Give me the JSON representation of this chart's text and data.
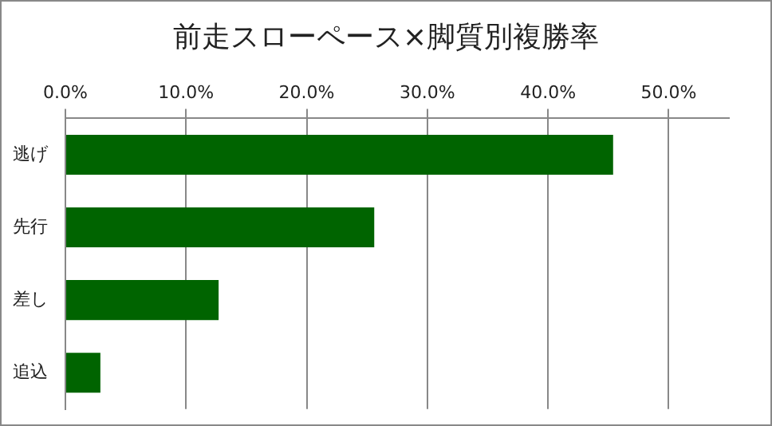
{
  "chart_data": {
    "type": "bar",
    "orientation": "horizontal",
    "title": "前走スローペース×脚質別複勝率",
    "categories": [
      "逃げ",
      "先行",
      "差し",
      "追込"
    ],
    "values": [
      45.4,
      25.6,
      12.7,
      2.9
    ],
    "color": "#006400",
    "xlim": [
      0,
      55
    ],
    "xticks": [
      {
        "value": 0,
        "label": "0.0%"
      },
      {
        "value": 10,
        "label": "10.0%"
      },
      {
        "value": 20,
        "label": "20.0%"
      },
      {
        "value": 30,
        "label": "30.0%"
      },
      {
        "value": 40,
        "label": "40.0%"
      },
      {
        "value": 50,
        "label": "50.0%"
      }
    ],
    "grid": "x",
    "legend": false
  }
}
